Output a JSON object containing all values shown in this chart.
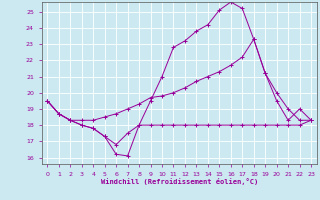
{
  "xlabel": "Windchill (Refroidissement éolien,°C)",
  "bg_color": "#cce8f0",
  "line_color": "#990099",
  "grid_color": "#ffffff",
  "xlim": [
    -0.5,
    23.5
  ],
  "ylim": [
    15.6,
    25.6
  ],
  "yticks": [
    16,
    17,
    18,
    19,
    20,
    21,
    22,
    23,
    24,
    25
  ],
  "xticks": [
    0,
    1,
    2,
    3,
    4,
    5,
    6,
    7,
    8,
    9,
    10,
    11,
    12,
    13,
    14,
    15,
    16,
    17,
    18,
    19,
    20,
    21,
    22,
    23
  ],
  "line1_x": [
    0,
    1,
    2,
    3,
    4,
    5,
    6,
    7,
    8,
    9,
    10,
    11,
    12,
    13,
    14,
    15,
    16,
    17,
    18,
    19,
    20,
    21,
    22,
    23
  ],
  "line1_y": [
    19.5,
    18.7,
    18.3,
    18.0,
    17.8,
    17.3,
    16.2,
    16.1,
    18.0,
    18.0,
    18.0,
    18.0,
    18.0,
    18.0,
    18.0,
    18.0,
    18.0,
    18.0,
    18.0,
    18.0,
    18.0,
    18.0,
    18.0,
    18.3
  ],
  "line2_x": [
    0,
    1,
    2,
    3,
    4,
    5,
    6,
    7,
    8,
    9,
    10,
    11,
    12,
    13,
    14,
    15,
    16,
    17,
    18,
    19,
    20,
    21,
    22,
    23
  ],
  "line2_y": [
    19.5,
    18.7,
    18.3,
    18.0,
    17.8,
    17.3,
    16.8,
    17.5,
    18.0,
    19.5,
    21.0,
    22.8,
    23.2,
    23.8,
    24.2,
    25.1,
    25.6,
    25.2,
    23.3,
    21.2,
    20.0,
    19.0,
    18.3,
    18.3
  ],
  "line3_x": [
    0,
    1,
    2,
    3,
    4,
    5,
    6,
    7,
    8,
    9,
    10,
    11,
    12,
    13,
    14,
    15,
    16,
    17,
    18,
    19,
    20,
    21,
    22,
    23
  ],
  "line3_y": [
    19.5,
    18.7,
    18.3,
    18.3,
    18.3,
    18.5,
    18.7,
    19.0,
    19.3,
    19.7,
    19.8,
    20.0,
    20.3,
    20.7,
    21.0,
    21.3,
    21.7,
    22.2,
    23.3,
    21.2,
    19.5,
    18.3,
    19.0,
    18.3
  ]
}
